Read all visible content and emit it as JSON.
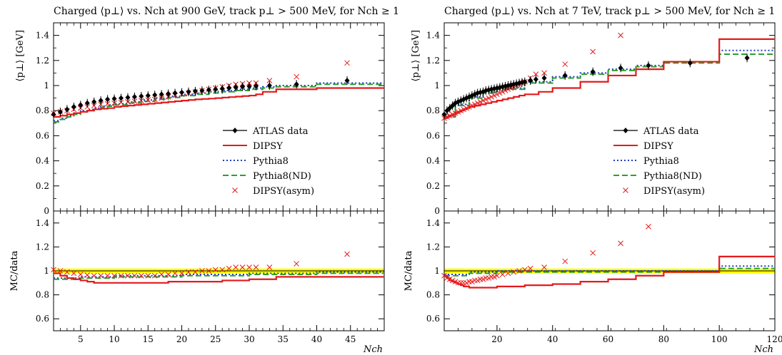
{
  "chart_data": [
    {
      "type": "line",
      "title": "Charged ⟨p⊥⟩ vs. Nch at 900 GeV, track p⊥ > 500 MeV, for Nch ≥ 1",
      "xlabel": "Nch",
      "ylabel": "⟨p⊥⟩  [GeV]",
      "ratio_ylabel": "MC/data",
      "xlim": [
        1,
        50
      ],
      "ylim": [
        0,
        1.5
      ],
      "ratio_ylim": [
        0.5,
        1.5
      ],
      "xticks": [
        5,
        10,
        15,
        20,
        25,
        30,
        35,
        40,
        45
      ],
      "yticks": [
        0,
        0.2,
        0.4,
        0.6,
        0.8,
        1,
        1.2,
        1.4
      ],
      "ratio_yticks": [
        0.6,
        0.8,
        1,
        1.2,
        1.4
      ],
      "xtick_labels": [
        "5",
        "10",
        "15",
        "20",
        "25",
        "30",
        "35",
        "40",
        "45"
      ],
      "ytick_labels": [
        "0",
        "0.2",
        "0.4",
        "0.6",
        "0.8",
        "1",
        "1.2",
        "1.4"
      ],
      "ratio_ytick_labels": [
        "0.6",
        "0.8",
        "1",
        "1.2",
        "1.4"
      ],
      "legend_position": "lower-right",
      "series": [
        {
          "name": "ATLAS data",
          "style": "points-errorbars",
          "color": "#000000",
          "x": [
            1,
            2,
            3,
            4,
            5,
            6,
            7,
            8,
            9,
            10,
            11,
            12,
            13,
            14,
            15,
            16,
            17,
            18,
            19,
            20,
            21,
            22,
            23,
            24,
            25,
            26,
            27,
            28,
            29,
            30,
            31,
            33,
            37,
            44.5
          ],
          "y": [
            0.77,
            0.79,
            0.81,
            0.83,
            0.845,
            0.86,
            0.87,
            0.88,
            0.89,
            0.895,
            0.9,
            0.905,
            0.91,
            0.915,
            0.92,
            0.925,
            0.93,
            0.935,
            0.94,
            0.945,
            0.95,
            0.955,
            0.96,
            0.965,
            0.97,
            0.975,
            0.98,
            0.985,
            0.99,
            0.993,
            0.996,
            1.0,
            1.01,
            1.04
          ]
        },
        {
          "name": "DIPSY",
          "style": "step",
          "color": "#e41a1c",
          "x": [
            1,
            2,
            3,
            4,
            5,
            6,
            7,
            8,
            9,
            10,
            11,
            12,
            13,
            14,
            15,
            16,
            17,
            18,
            19,
            20,
            21,
            22,
            23,
            24,
            25,
            26,
            27,
            28,
            29,
            30,
            31,
            32,
            34,
            40,
            50
          ],
          "y": [
            0.75,
            0.76,
            0.77,
            0.78,
            0.79,
            0.8,
            0.81,
            0.815,
            0.82,
            0.83,
            0.835,
            0.84,
            0.845,
            0.85,
            0.855,
            0.86,
            0.865,
            0.87,
            0.875,
            0.88,
            0.885,
            0.89,
            0.893,
            0.896,
            0.9,
            0.904,
            0.908,
            0.912,
            0.916,
            0.92,
            0.93,
            0.95,
            0.97,
            0.98,
            0.98
          ]
        },
        {
          "name": "Pythia8",
          "style": "dotted-step",
          "color": "#1f3fbf",
          "x": [
            1,
            2,
            3,
            4,
            5,
            6,
            7,
            8,
            9,
            10,
            12,
            14,
            16,
            18,
            20,
            22,
            24,
            26,
            28,
            30,
            32,
            34,
            40,
            50
          ],
          "y": [
            0.72,
            0.74,
            0.76,
            0.78,
            0.8,
            0.81,
            0.82,
            0.835,
            0.845,
            0.855,
            0.87,
            0.885,
            0.9,
            0.915,
            0.93,
            0.94,
            0.95,
            0.96,
            0.97,
            0.98,
            0.99,
            1.0,
            1.02,
            1.02
          ]
        },
        {
          "name": "Pythia8(ND)",
          "style": "dashed-step",
          "color": "#2ca02c",
          "x": [
            1,
            2,
            3,
            4,
            5,
            6,
            7,
            8,
            9,
            10,
            12,
            14,
            16,
            18,
            20,
            22,
            24,
            26,
            28,
            30,
            32,
            34,
            40,
            50
          ],
          "y": [
            0.71,
            0.73,
            0.75,
            0.77,
            0.79,
            0.8,
            0.81,
            0.825,
            0.835,
            0.845,
            0.86,
            0.875,
            0.89,
            0.905,
            0.92,
            0.93,
            0.94,
            0.95,
            0.96,
            0.97,
            0.98,
            0.99,
            1.01,
            1.01
          ]
        },
        {
          "name": "DIPSY(asym)",
          "style": "crosses",
          "color": "#e41a1c",
          "x": [
            1,
            2,
            3,
            4,
            5,
            6,
            7,
            8,
            9,
            10,
            11,
            12,
            13,
            14,
            15,
            16,
            17,
            18,
            19,
            20,
            21,
            22,
            23,
            24,
            25,
            26,
            27,
            28,
            29,
            30,
            31,
            33,
            37,
            44.5
          ],
          "y": [
            0.78,
            0.79,
            0.8,
            0.81,
            0.82,
            0.83,
            0.84,
            0.85,
            0.855,
            0.86,
            0.865,
            0.87,
            0.875,
            0.88,
            0.885,
            0.89,
            0.9,
            0.91,
            0.92,
            0.93,
            0.94,
            0.95,
            0.96,
            0.97,
            0.98,
            0.99,
            1.0,
            1.01,
            1.015,
            1.02,
            1.02,
            1.04,
            1.07,
            1.18
          ]
        }
      ],
      "ratio_series": [
        {
          "name": "DIPSY",
          "style": "step",
          "color": "#e41a1c",
          "x": [
            1,
            2,
            3,
            4,
            5,
            6,
            7,
            8,
            9,
            10,
            12,
            14,
            16,
            18,
            20,
            22,
            24,
            26,
            28,
            30,
            32,
            34,
            40,
            50
          ],
          "y": [
            0.98,
            0.96,
            0.94,
            0.93,
            0.92,
            0.91,
            0.9,
            0.9,
            0.9,
            0.9,
            0.9,
            0.9,
            0.9,
            0.91,
            0.91,
            0.91,
            0.91,
            0.92,
            0.92,
            0.93,
            0.93,
            0.95,
            0.95,
            0.95
          ]
        },
        {
          "name": "Pythia8",
          "style": "dotted-step",
          "color": "#1f3fbf",
          "x": [
            1,
            5,
            10,
            20,
            30,
            40,
            50
          ],
          "y": [
            0.94,
            0.95,
            0.96,
            0.97,
            0.98,
            0.99,
            0.99
          ]
        },
        {
          "name": "Pythia8(ND)",
          "style": "dashed-step",
          "color": "#2ca02c",
          "x": [
            1,
            5,
            10,
            20,
            30,
            40,
            50
          ],
          "y": [
            0.93,
            0.94,
            0.95,
            0.96,
            0.97,
            0.98,
            0.98
          ]
        },
        {
          "name": "DIPSY(asym)",
          "style": "crosses",
          "color": "#e41a1c",
          "x": [
            1,
            2,
            3,
            4,
            5,
            6,
            7,
            8,
            9,
            10,
            11,
            12,
            13,
            14,
            15,
            16,
            17,
            18,
            19,
            20,
            21,
            22,
            23,
            24,
            25,
            26,
            27,
            28,
            29,
            30,
            31,
            33,
            37,
            44.5
          ],
          "y": [
            1.01,
            1.0,
            0.99,
            0.98,
            0.97,
            0.965,
            0.96,
            0.96,
            0.96,
            0.96,
            0.96,
            0.96,
            0.96,
            0.96,
            0.96,
            0.96,
            0.97,
            0.97,
            0.98,
            0.98,
            0.99,
            0.99,
            1.0,
            1.0,
            1.01,
            1.01,
            1.02,
            1.03,
            1.03,
            1.03,
            1.03,
            1.03,
            1.06,
            1.14
          ]
        }
      ]
    },
    {
      "type": "line",
      "title": "Charged ⟨p⊥⟩ vs. Nch at 7 TeV, track p⊥ > 500 MeV, for Nch ≥ 1",
      "xlabel": "Nch",
      "ylabel": "⟨p⊥⟩  [GeV]",
      "ratio_ylabel": "MC/data",
      "xlim": [
        1,
        120
      ],
      "ylim": [
        0,
        1.5
      ],
      "ratio_ylim": [
        0.5,
        1.5
      ],
      "xticks": [
        20,
        40,
        60,
        80,
        100,
        120
      ],
      "yticks": [
        0,
        0.2,
        0.4,
        0.6,
        0.8,
        1,
        1.2,
        1.4
      ],
      "ratio_yticks": [
        0.6,
        0.8,
        1,
        1.2,
        1.4
      ],
      "xtick_labels": [
        "20",
        "40",
        "60",
        "80",
        "100",
        "120"
      ],
      "ytick_labels": [
        "0",
        "0.2",
        "0.4",
        "0.6",
        "0.8",
        "1",
        "1.2",
        "1.4"
      ],
      "ratio_ytick_labels": [
        "0.6",
        "0.8",
        "1",
        "1.2",
        "1.4"
      ],
      "legend_position": "lower-right",
      "series": [
        {
          "name": "ATLAS data",
          "style": "points-errorbars",
          "color": "#000000",
          "x": [
            1,
            2,
            3,
            4,
            5,
            6,
            7,
            8,
            9,
            10,
            11,
            12,
            13,
            14,
            15,
            16,
            17,
            18,
            19,
            20,
            21,
            22,
            23,
            24,
            25,
            26,
            27,
            28,
            29,
            30,
            32,
            34,
            37,
            44.5,
            54.5,
            64.5,
            74.5,
            89.5,
            110
          ],
          "y": [
            0.77,
            0.8,
            0.82,
            0.84,
            0.86,
            0.87,
            0.88,
            0.89,
            0.9,
            0.91,
            0.92,
            0.93,
            0.94,
            0.945,
            0.95,
            0.96,
            0.965,
            0.97,
            0.975,
            0.98,
            0.985,
            0.99,
            0.995,
            1.0,
            1.005,
            1.01,
            1.015,
            1.02,
            1.025,
            1.03,
            1.04,
            1.05,
            1.06,
            1.08,
            1.11,
            1.14,
            1.16,
            1.18,
            1.22
          ]
        },
        {
          "name": "DIPSY",
          "style": "step",
          "color": "#e41a1c",
          "x": [
            1,
            2,
            3,
            4,
            5,
            6,
            7,
            8,
            9,
            10,
            12,
            14,
            16,
            18,
            20,
            22,
            24,
            26,
            28,
            30,
            35,
            40,
            50,
            60,
            70,
            80,
            100,
            120
          ],
          "y": [
            0.74,
            0.75,
            0.76,
            0.77,
            0.78,
            0.79,
            0.8,
            0.81,
            0.82,
            0.83,
            0.84,
            0.85,
            0.86,
            0.87,
            0.88,
            0.89,
            0.9,
            0.91,
            0.92,
            0.93,
            0.95,
            0.98,
            1.03,
            1.08,
            1.13,
            1.19,
            1.37,
            1.37
          ]
        },
        {
          "name": "Pythia8",
          "style": "dotted-step",
          "color": "#1f3fbf",
          "x": [
            1,
            5,
            10,
            15,
            20,
            30,
            40,
            50,
            60,
            70,
            80,
            100,
            120
          ],
          "y": [
            0.76,
            0.85,
            0.91,
            0.95,
            0.98,
            1.03,
            1.07,
            1.1,
            1.13,
            1.16,
            1.19,
            1.28,
            1.28
          ]
        },
        {
          "name": "Pythia8(ND)",
          "style": "dashed-step",
          "color": "#2ca02c",
          "x": [
            1,
            5,
            10,
            15,
            20,
            30,
            40,
            50,
            60,
            70,
            80,
            100,
            120
          ],
          "y": [
            0.75,
            0.84,
            0.9,
            0.94,
            0.97,
            1.02,
            1.06,
            1.09,
            1.12,
            1.15,
            1.18,
            1.25,
            1.25
          ]
        },
        {
          "name": "DIPSY(asym)",
          "style": "crosses",
          "color": "#e41a1c",
          "x": [
            1,
            2,
            3,
            4,
            5,
            6,
            7,
            8,
            9,
            10,
            11,
            12,
            13,
            14,
            15,
            16,
            17,
            18,
            19,
            20,
            21,
            22,
            23,
            24,
            25,
            26,
            27,
            28,
            29,
            30,
            32,
            34,
            37,
            44.5,
            54.5,
            64.5
          ],
          "y": [
            0.74,
            0.75,
            0.76,
            0.77,
            0.78,
            0.79,
            0.8,
            0.81,
            0.82,
            0.83,
            0.84,
            0.85,
            0.86,
            0.87,
            0.88,
            0.89,
            0.9,
            0.91,
            0.92,
            0.93,
            0.94,
            0.95,
            0.96,
            0.97,
            0.98,
            0.99,
            1.0,
            1.01,
            1.02,
            1.03,
            1.06,
            1.09,
            1.1,
            1.17,
            1.27,
            1.4
          ]
        }
      ],
      "ratio_series": [
        {
          "name": "DIPSY",
          "style": "step",
          "color": "#e41a1c",
          "x": [
            1,
            2,
            3,
            4,
            5,
            6,
            7,
            8,
            10,
            15,
            20,
            30,
            40,
            50,
            60,
            70,
            80,
            100,
            120
          ],
          "y": [
            0.96,
            0.94,
            0.92,
            0.91,
            0.9,
            0.89,
            0.88,
            0.87,
            0.86,
            0.86,
            0.87,
            0.88,
            0.89,
            0.91,
            0.93,
            0.96,
            0.99,
            1.12,
            1.12
          ]
        },
        {
          "name": "Pythia8",
          "style": "dotted-step",
          "color": "#1f3fbf",
          "x": [
            1,
            10,
            20,
            40,
            60,
            80,
            100,
            120
          ],
          "y": [
            0.97,
            0.99,
            1.0,
            1.0,
            1.0,
            1.0,
            1.04,
            1.04
          ]
        },
        {
          "name": "Pythia8(ND)",
          "style": "dashed-step",
          "color": "#2ca02c",
          "x": [
            1,
            10,
            20,
            40,
            60,
            80,
            100,
            120
          ],
          "y": [
            0.96,
            0.98,
            0.99,
            0.99,
            0.99,
            0.99,
            1.02,
            1.02
          ]
        },
        {
          "name": "DIPSY(asym)",
          "style": "crosses",
          "color": "#e41a1c",
          "x": [
            1,
            2,
            3,
            4,
            5,
            6,
            7,
            8,
            9,
            10,
            11,
            12,
            13,
            14,
            15,
            16,
            17,
            18,
            19,
            20,
            22,
            24,
            26,
            28,
            30,
            32,
            37,
            44.5,
            54.5,
            64.5,
            74.5
          ],
          "y": [
            0.96,
            0.94,
            0.93,
            0.92,
            0.91,
            0.9,
            0.9,
            0.9,
            0.9,
            0.91,
            0.91,
            0.92,
            0.92,
            0.93,
            0.93,
            0.94,
            0.94,
            0.95,
            0.95,
            0.96,
            0.97,
            0.98,
            0.99,
            1.0,
            1.01,
            1.02,
            1.03,
            1.08,
            1.15,
            1.23,
            1.37
          ]
        }
      ]
    }
  ]
}
